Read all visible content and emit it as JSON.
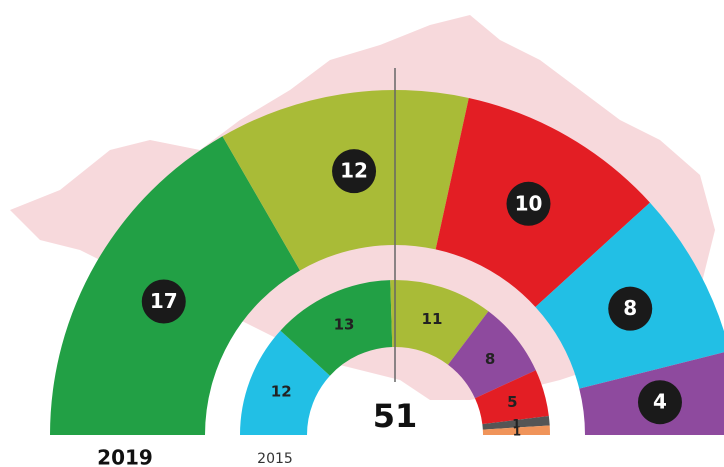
{
  "chart_data": {
    "type": "parliament",
    "total": 51,
    "rings": [
      {
        "name": "2019",
        "values": [
          17,
          12,
          10,
          8,
          4
        ],
        "colors": [
          "#22a045",
          "#a9bb37",
          "#e31e24",
          "#22bfe5",
          "#8e4a9e"
        ]
      },
      {
        "name": "2015",
        "values": [
          12,
          13,
          11,
          8,
          5,
          1,
          1
        ],
        "colors": [
          "#22bfe5",
          "#22a045",
          "#a9bb37",
          "#8e4a9e",
          "#e31e24",
          "#555555",
          "#f0945a"
        ]
      }
    ]
  }
}
